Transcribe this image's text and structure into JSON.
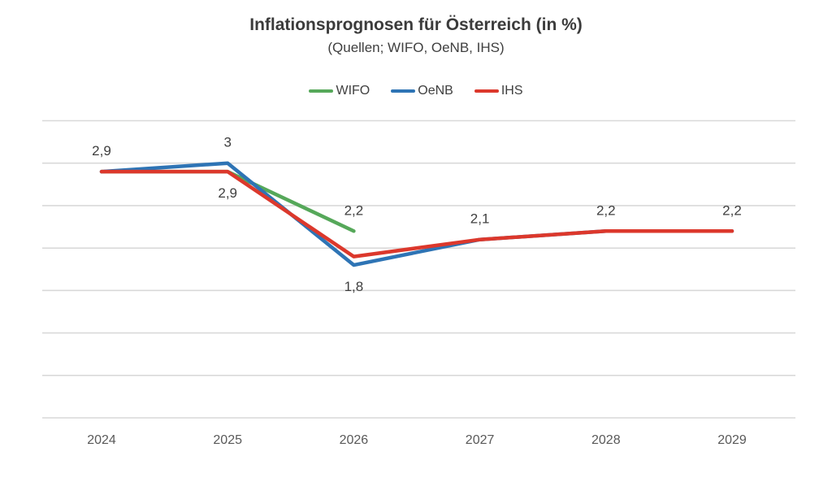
{
  "title": "Inflationsprognosen für Österreich (in %)",
  "subtitle": "(Quellen; WIFO, OeNB, IHS)",
  "chart_data": {
    "type": "line",
    "categories": [
      "2024",
      "2025",
      "2026",
      "2027",
      "2028",
      "2029"
    ],
    "series": [
      {
        "name": "WIFO",
        "color": "#56A85A",
        "values": [
          2.9,
          2.9,
          2.2,
          null,
          null,
          null
        ]
      },
      {
        "name": "OeNB",
        "color": "#2E74B5",
        "values": [
          2.9,
          3.0,
          1.8,
          2.1,
          2.2,
          2.2
        ]
      },
      {
        "name": "IHS",
        "color": "#DC382C",
        "values": [
          2.9,
          2.9,
          1.9,
          2.1,
          2.2,
          2.2
        ]
      }
    ],
    "point_labels": [
      {
        "ci": 0,
        "text": "2,9",
        "value": 2.9,
        "placement": "above"
      },
      {
        "ci": 1,
        "text": "3",
        "value": 3.0,
        "placement": "above"
      },
      {
        "ci": 1,
        "text": "2,9",
        "value": 2.9,
        "placement": "below"
      },
      {
        "ci": 2,
        "text": "2,2",
        "value": 2.2,
        "placement": "above"
      },
      {
        "ci": 2,
        "text": "1,8",
        "value": 1.8,
        "placement": "below"
      },
      {
        "ci": 3,
        "text": "2,1",
        "value": 2.1,
        "placement": "above"
      },
      {
        "ci": 4,
        "text": "2,2",
        "value": 2.2,
        "placement": "above"
      },
      {
        "ci": 5,
        "text": "2,2",
        "value": 2.2,
        "placement": "above"
      }
    ],
    "title": "Inflationsprognosen für Österreich (in %)",
    "xlabel": "",
    "ylabel": "",
    "ylim": [
      0,
      3.5
    ],
    "grid_step": 0.5,
    "grid": true,
    "y_tick_labels_shown": false,
    "legend_position": "top"
  },
  "colors": {
    "background": "#FFFFFF",
    "gridline": "#D9D9D9",
    "title_text": "#3B3B3B",
    "subtitle_text": "#3F3F3F",
    "data_label_text": "#3F3F3F",
    "axis_tick_text": "#595959",
    "wifo_green": "#56A85A",
    "oenb_blue": "#2E74B5",
    "ihs_red": "#DC382C"
  }
}
